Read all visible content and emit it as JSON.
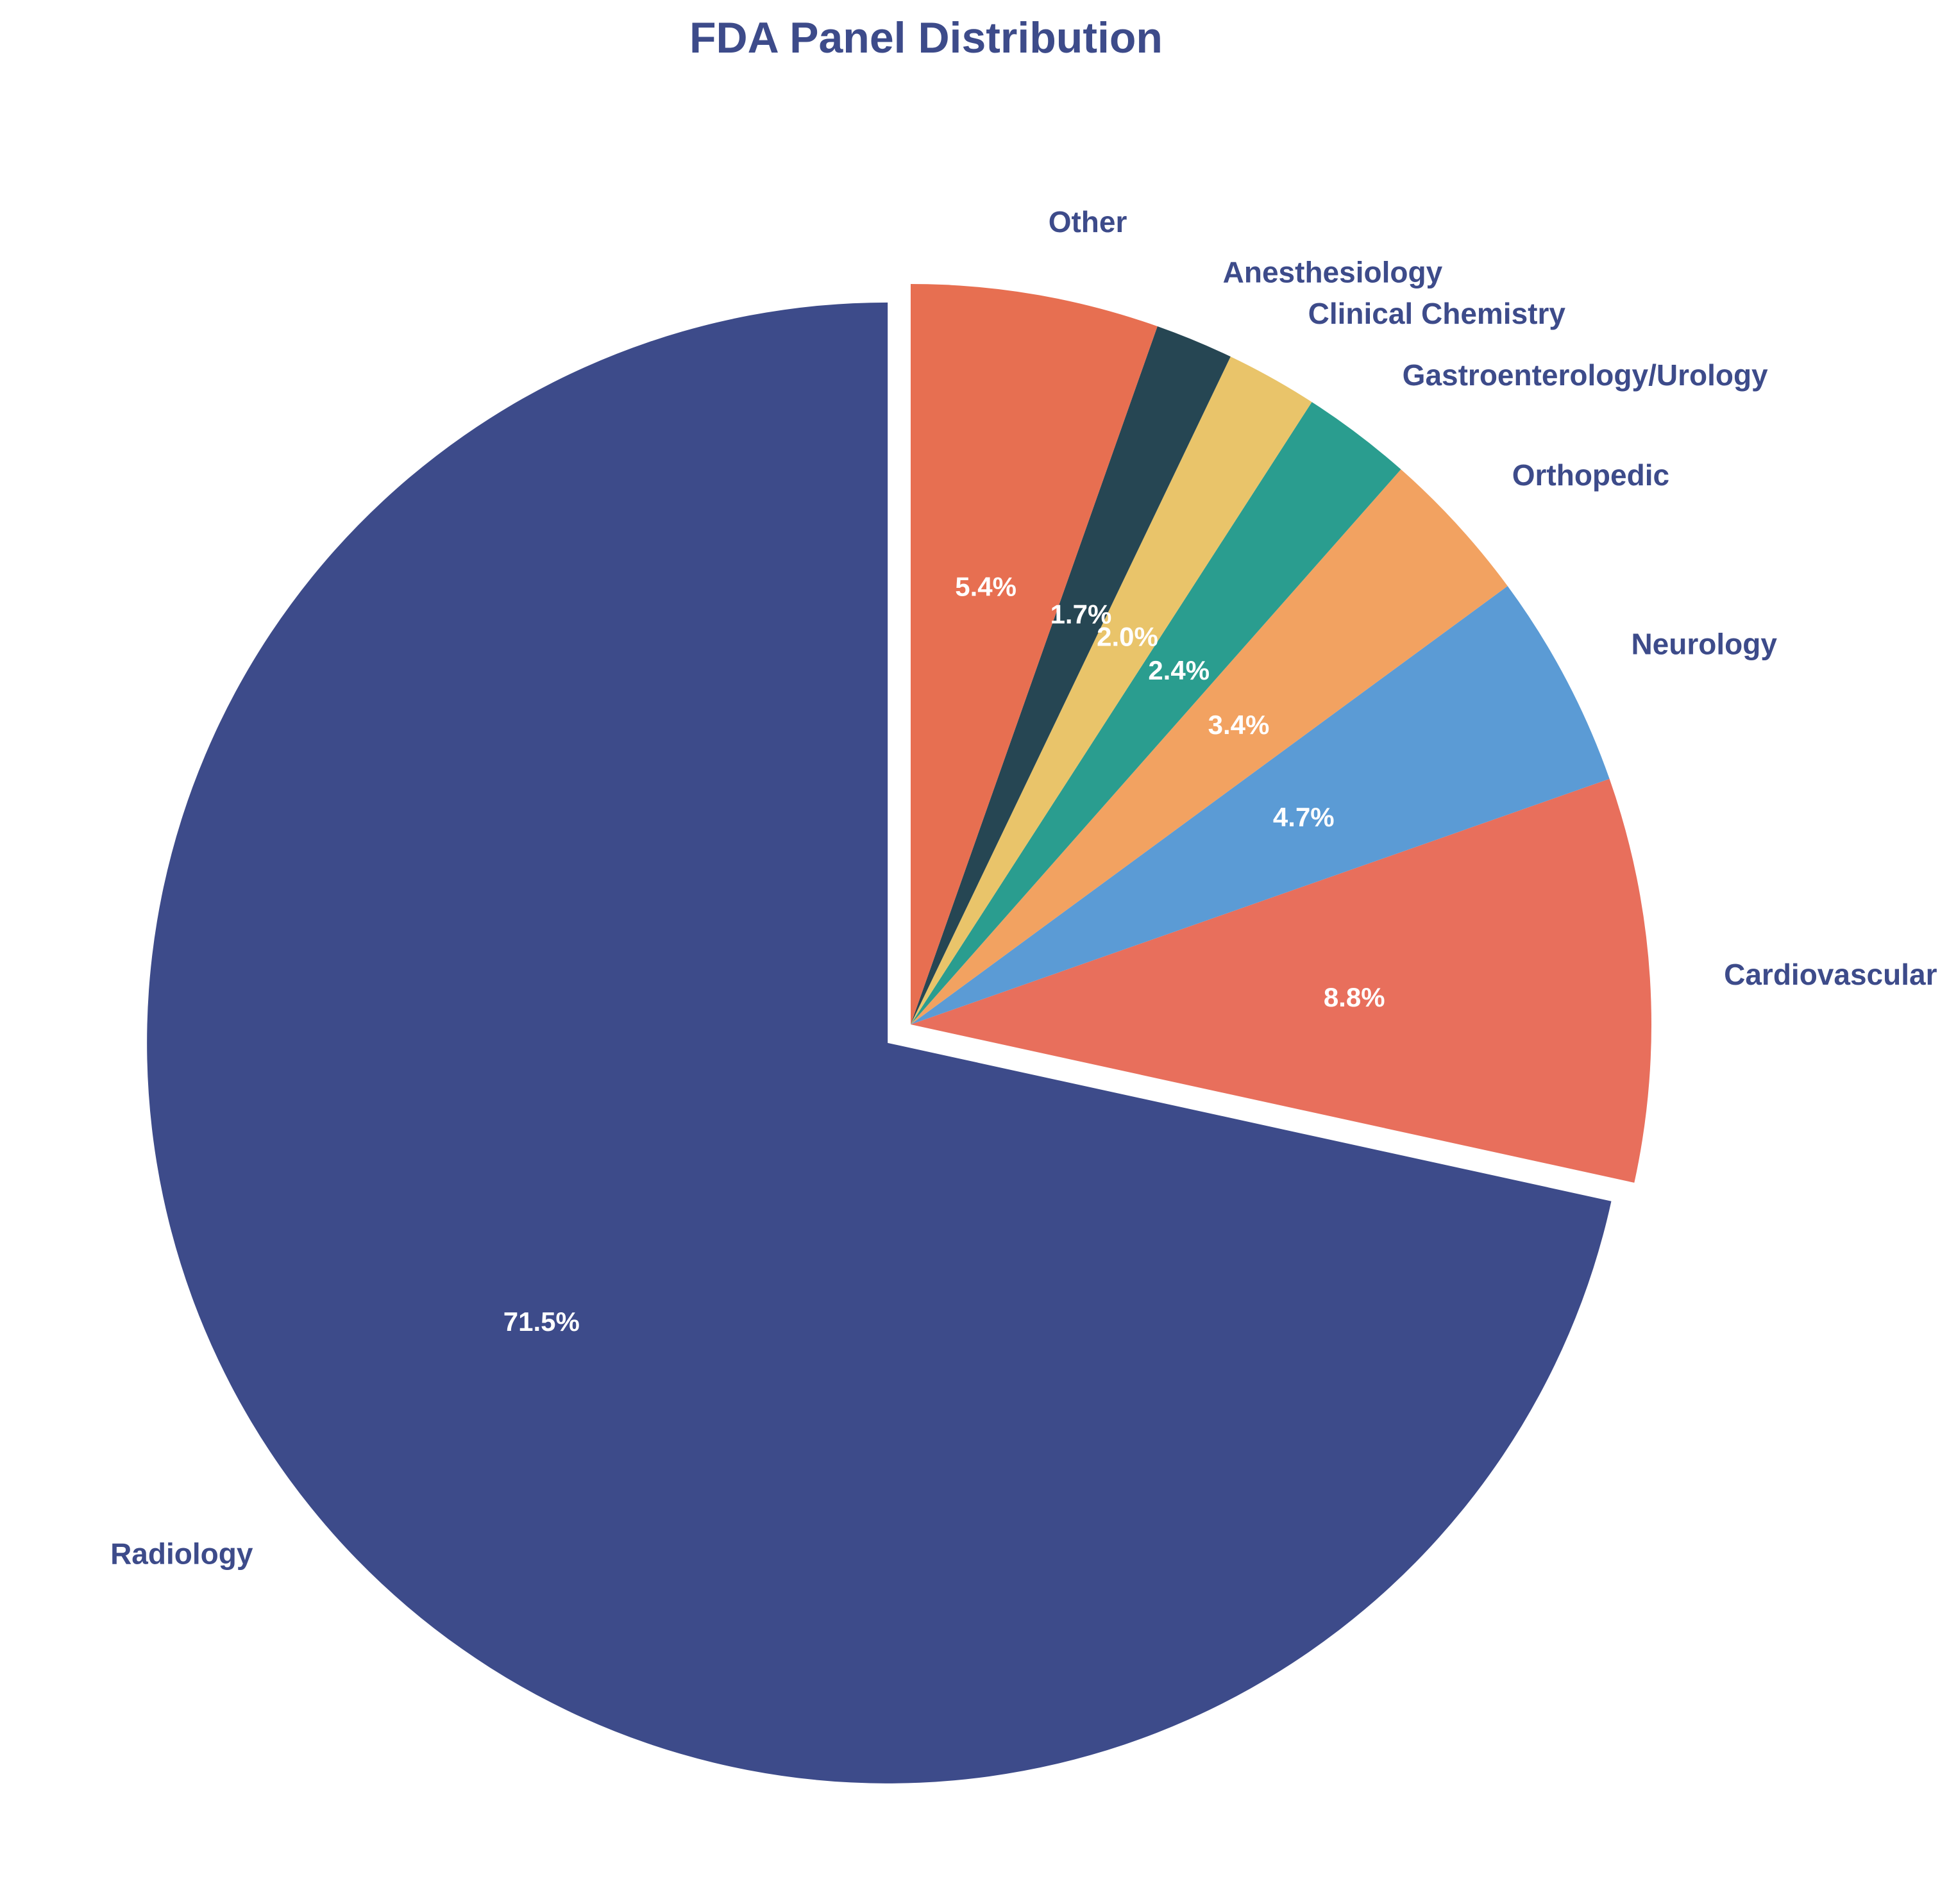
{
  "chart_data": {
    "type": "pie",
    "title": "FDA Panel Distribution",
    "categories": [
      "Radiology",
      "Cardiovascular",
      "Neurology",
      "Orthopedic",
      "Gastroenterology/Urology",
      "Clinical Chemistry",
      "Anesthesiology",
      "Other"
    ],
    "values": [
      71.5,
      8.8,
      4.7,
      3.4,
      2.4,
      2.0,
      1.7,
      5.4
    ],
    "value_labels": [
      "71.5%",
      "8.8%",
      "4.7%",
      "3.4%",
      "2.4%",
      "2.0%",
      "1.7%",
      "5.4%"
    ],
    "colors": [
      "#3d4b8a",
      "#e86f5c",
      "#5b9bd5",
      "#f2a261",
      "#2a9d8f",
      "#e9c46a",
      "#264653",
      "#e76f51"
    ],
    "exploded": [
      "Radiology"
    ],
    "start_angle_deg": 90,
    "direction": "counterclockwise",
    "label_color": "#3d4b8a",
    "title_color": "#3d4b8a",
    "pct_label_color": "#ffffff"
  }
}
